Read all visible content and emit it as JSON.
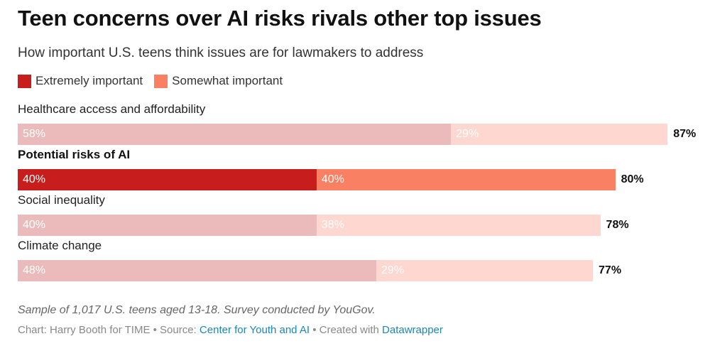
{
  "title": "Teen concerns over AI risks rivals other top issues",
  "subtitle": "How important U.S. teens think issues are for lawmakers to address",
  "legend": [
    {
      "label": "Extremely important",
      "color": "#c71e1d"
    },
    {
      "label": "Somewhat important",
      "color": "#fa8064"
    }
  ],
  "colors": {
    "highlight_extreme": "#c71e1d",
    "highlight_somewhat": "#fa8064",
    "muted_extreme": "#ebbaba",
    "muted_somewhat": "#fdd7d0"
  },
  "chart_data": {
    "type": "bar",
    "orientation": "horizontal",
    "stacked": true,
    "title": "Teen concerns over AI risks rivals other top issues",
    "subtitle": "How important U.S. teens think issues are for lawmakers to address",
    "xlim": [
      0,
      100
    ],
    "categories": [
      "Healthcare access and affordability",
      "Potential risks of AI",
      "Social inequality",
      "Climate change"
    ],
    "highlighted": [
      false,
      true,
      false,
      false
    ],
    "series": [
      {
        "name": "Extremely important",
        "values": [
          58,
          40,
          40,
          48
        ],
        "labels": [
          "58%",
          "40%",
          "40%",
          "48%"
        ]
      },
      {
        "name": "Somewhat important",
        "values": [
          29,
          40,
          38,
          29
        ],
        "labels": [
          "29%",
          "40%",
          "38%",
          "29%"
        ]
      }
    ],
    "totals": [
      "87%",
      "80%",
      "78%",
      "77%"
    ]
  },
  "footer": {
    "note": "Sample of 1,017 U.S. teens aged 13-18. Survey conducted by YouGov.",
    "chart_by": "Chart: Harry Booth for TIME",
    "separator": " • ",
    "source_prefix": "Source: ",
    "source_link": "Center for Youth and AI",
    "created_prefix": "Created with ",
    "created_link": "Datawrapper"
  }
}
